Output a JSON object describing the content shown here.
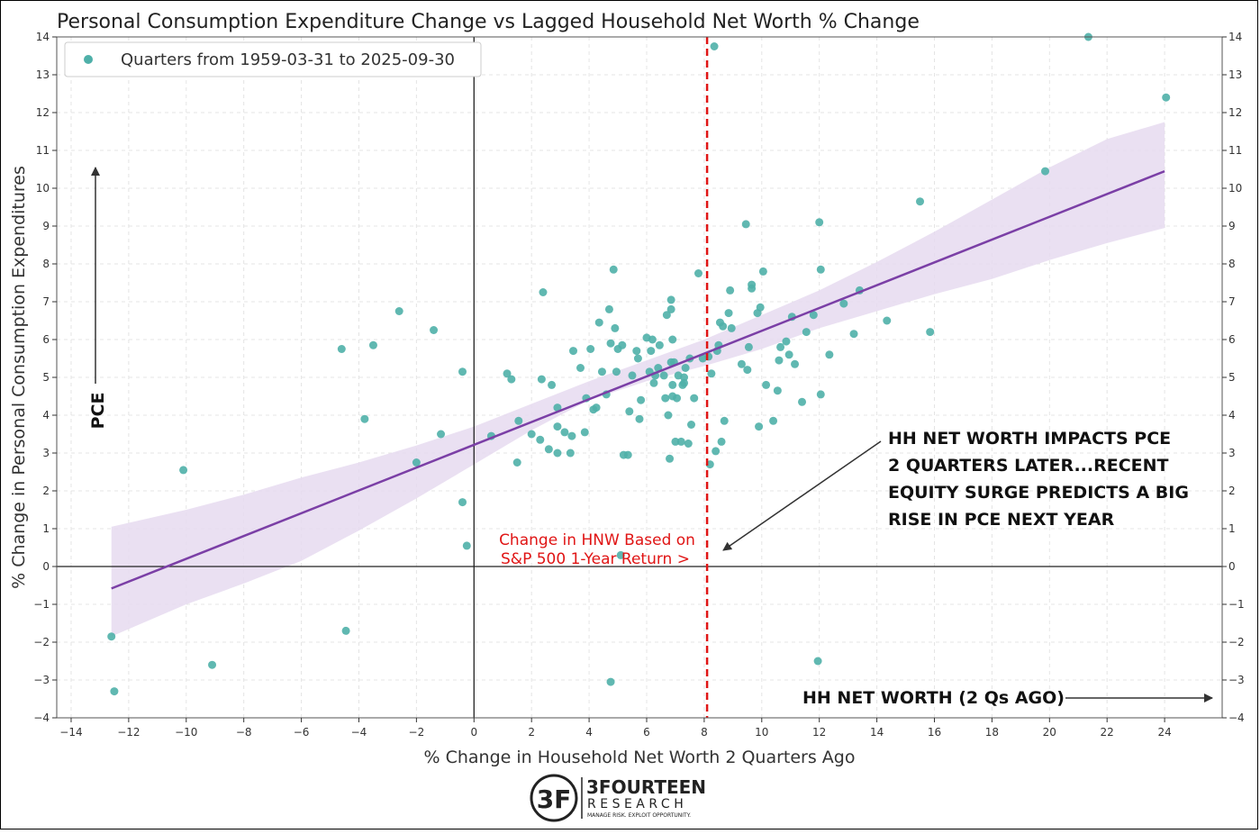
{
  "chart_data": {
    "type": "scatter",
    "title": "Personal Consumption Expenditure Change vs Lagged Household Net Worth % Change",
    "xlabel": "% Change in Household Net Worth 2 Quarters Ago",
    "ylabel": "% Change in Personal Consumption Expenditures",
    "xlim": [
      -14.5,
      26
    ],
    "ylim": [
      -4,
      14
    ],
    "x_ticks": [
      -14,
      -12,
      -10,
      -8,
      -6,
      -4,
      -2,
      0,
      2,
      4,
      6,
      8,
      10,
      12,
      14,
      16,
      18,
      20,
      22,
      24
    ],
    "y_ticks": [
      -4,
      -3,
      -2,
      -1,
      0,
      1,
      2,
      3,
      4,
      5,
      6,
      7,
      8,
      9,
      10,
      11,
      12,
      13,
      14
    ],
    "x_tick_labels": [
      "−14",
      "−12",
      "−10",
      "−8",
      "−6",
      "−4",
      "−2",
      "0",
      "2",
      "4",
      "6",
      "8",
      "10",
      "12",
      "14",
      "16",
      "18",
      "20",
      "22",
      "24"
    ],
    "y_tick_labels": [
      "−4",
      "−3",
      "−2",
      "−1",
      "0",
      "1",
      "2",
      "3",
      "4",
      "5",
      "6",
      "7",
      "8",
      "9",
      "10",
      "11",
      "12",
      "13",
      "14"
    ],
    "grid": true,
    "legend": {
      "placement": "top-left",
      "entry": "Quarters from 1959-03-31 to 2025-09-30"
    },
    "colors": {
      "points": "#4fb0a9",
      "fit_line": "#7b3fa6",
      "band": "#e6daf0",
      "vline": "#e01515",
      "axes": "#000000"
    },
    "series": [
      {
        "points": [
          [
            -12.6,
            -1.85
          ],
          [
            -12.5,
            -3.3
          ],
          [
            -10.1,
            2.55
          ],
          [
            -9.1,
            -2.6
          ],
          [
            -4.6,
            5.75
          ],
          [
            -4.45,
            -1.7
          ],
          [
            -3.8,
            3.9
          ],
          [
            -3.5,
            5.85
          ],
          [
            -2.6,
            6.75
          ],
          [
            -2.0,
            2.75
          ],
          [
            -1.4,
            6.25
          ],
          [
            -1.15,
            3.5
          ],
          [
            -0.4,
            5.15
          ],
          [
            -0.4,
            1.7
          ],
          [
            -0.25,
            0.55
          ],
          [
            0.6,
            3.45
          ],
          [
            1.15,
            5.1
          ],
          [
            1.3,
            4.95
          ],
          [
            1.5,
            2.75
          ],
          [
            1.55,
            3.85
          ],
          [
            2.0,
            3.5
          ],
          [
            2.3,
            3.35
          ],
          [
            2.35,
            4.95
          ],
          [
            2.4,
            7.25
          ],
          [
            2.6,
            3.1
          ],
          [
            2.7,
            4.8
          ],
          [
            2.9,
            3.0
          ],
          [
            2.9,
            3.7
          ],
          [
            2.9,
            4.2
          ],
          [
            3.15,
            3.55
          ],
          [
            3.35,
            3.0
          ],
          [
            3.4,
            3.45
          ],
          [
            3.45,
            5.7
          ],
          [
            3.7,
            5.25
          ],
          [
            3.85,
            3.55
          ],
          [
            3.9,
            4.45
          ],
          [
            4.05,
            5.75
          ],
          [
            4.15,
            4.15
          ],
          [
            4.25,
            4.2
          ],
          [
            4.35,
            6.45
          ],
          [
            4.45,
            5.15
          ],
          [
            4.6,
            4.55
          ],
          [
            4.7,
            6.8
          ],
          [
            4.75,
            5.9
          ],
          [
            4.85,
            7.85
          ],
          [
            4.9,
            6.3
          ],
          [
            4.95,
            5.15
          ],
          [
            5.0,
            5.75
          ],
          [
            5.15,
            5.85
          ],
          [
            5.2,
            2.95
          ],
          [
            5.35,
            2.95
          ],
          [
            5.4,
            4.1
          ],
          [
            5.5,
            5.05
          ],
          [
            5.65,
            5.7
          ],
          [
            5.7,
            5.5
          ],
          [
            5.75,
            3.9
          ],
          [
            5.8,
            4.4
          ],
          [
            6.0,
            6.05
          ],
          [
            6.1,
            5.15
          ],
          [
            6.15,
            5.7
          ],
          [
            6.2,
            6.0
          ],
          [
            6.25,
            4.85
          ],
          [
            6.3,
            5.05
          ],
          [
            6.4,
            5.25
          ],
          [
            6.45,
            5.85
          ],
          [
            6.6,
            5.05
          ],
          [
            6.65,
            4.45
          ],
          [
            6.7,
            6.65
          ],
          [
            6.75,
            4.0
          ],
          [
            6.8,
            2.85
          ],
          [
            6.85,
            5.4
          ],
          [
            6.85,
            6.8
          ],
          [
            6.85,
            7.05
          ],
          [
            6.9,
            4.5
          ],
          [
            6.9,
            4.8
          ],
          [
            6.9,
            6.0
          ],
          [
            6.95,
            5.4
          ],
          [
            7.0,
            3.3
          ],
          [
            7.05,
            4.45
          ],
          [
            7.1,
            5.05
          ],
          [
            7.2,
            3.3
          ],
          [
            7.25,
            4.8
          ],
          [
            7.3,
            5.0
          ],
          [
            7.3,
            4.85
          ],
          [
            7.35,
            5.25
          ],
          [
            7.45,
            3.25
          ],
          [
            7.5,
            5.5
          ],
          [
            7.55,
            3.75
          ],
          [
            7.65,
            4.45
          ],
          [
            7.8,
            7.75
          ],
          [
            7.95,
            5.5
          ],
          [
            8.15,
            5.55
          ],
          [
            8.2,
            2.7
          ],
          [
            8.25,
            5.1
          ],
          [
            8.35,
            13.75
          ],
          [
            8.4,
            3.05
          ],
          [
            8.45,
            5.7
          ],
          [
            8.5,
            5.85
          ],
          [
            8.55,
            6.45
          ],
          [
            8.6,
            3.3
          ],
          [
            8.65,
            6.35
          ],
          [
            8.7,
            3.85
          ],
          [
            8.85,
            6.7
          ],
          [
            8.9,
            7.3
          ],
          [
            8.95,
            6.3
          ],
          [
            9.3,
            5.35
          ],
          [
            9.45,
            9.05
          ],
          [
            9.5,
            5.2
          ],
          [
            9.55,
            5.8
          ],
          [
            9.65,
            7.45
          ],
          [
            9.65,
            7.35
          ],
          [
            9.85,
            6.7
          ],
          [
            9.9,
            3.7
          ],
          [
            9.95,
            6.85
          ],
          [
            10.05,
            7.8
          ],
          [
            10.15,
            4.8
          ],
          [
            10.4,
            3.85
          ],
          [
            10.55,
            4.65
          ],
          [
            10.6,
            5.45
          ],
          [
            10.65,
            5.8
          ],
          [
            10.85,
            5.95
          ],
          [
            10.95,
            5.6
          ],
          [
            11.05,
            6.6
          ],
          [
            11.15,
            5.35
          ],
          [
            11.4,
            4.35
          ],
          [
            11.55,
            6.2
          ],
          [
            11.8,
            6.65
          ],
          [
            12.0,
            9.1
          ],
          [
            12.05,
            7.85
          ],
          [
            12.05,
            4.55
          ],
          [
            11.95,
            -2.5
          ],
          [
            12.35,
            5.6
          ],
          [
            12.85,
            6.95
          ],
          [
            13.2,
            6.15
          ],
          [
            13.4,
            7.3
          ],
          [
            14.35,
            6.5
          ],
          [
            15.5,
            9.65
          ],
          [
            15.85,
            6.2
          ],
          [
            19.85,
            10.45
          ],
          [
            21.35,
            14.0
          ],
          [
            24.05,
            12.4
          ],
          [
            4.75,
            -3.05
          ],
          [
            5.1,
            0.3
          ]
        ]
      }
    ],
    "fit_line": {
      "x": [
        -12.6,
        24.0
      ],
      "y": [
        -0.58,
        10.45
      ]
    },
    "confidence_band": {
      "x": [
        -12.6,
        -10,
        -8,
        -6,
        -4,
        -2,
        0,
        2,
        4,
        6,
        8,
        10,
        12,
        14,
        16,
        18,
        20,
        22,
        24
      ],
      "lower": [
        -1.85,
        -1.0,
        -0.45,
        0.15,
        0.95,
        1.8,
        2.7,
        3.6,
        4.4,
        4.9,
        5.3,
        5.75,
        6.3,
        6.75,
        7.2,
        7.6,
        8.1,
        8.55,
        8.95
      ],
      "upper": [
        1.05,
        1.5,
        1.9,
        2.35,
        2.75,
        3.2,
        3.7,
        4.3,
        4.9,
        5.45,
        6.0,
        6.65,
        7.3,
        8.05,
        8.85,
        9.7,
        10.55,
        11.3,
        11.75
      ]
    },
    "vline_x": 8.1,
    "annotations": {
      "vline_label_1": "Change in HNW Based on",
      "vline_label_2": "S&P 500 1-Year Return >",
      "callout_1": "HH NET WORTH IMPACTS PCE",
      "callout_2": "2 QUARTERS LATER...RECENT",
      "callout_3": "EQUITY SURGE PREDICTS A BIG",
      "callout_4": "RISE IN PCE NEXT YEAR",
      "y_arrow_label": "PCE",
      "x_arrow_label": "HH NET WORTH (2 Qs AGO)"
    }
  },
  "logo": {
    "mark": "3F",
    "name": "3FOURTEEN",
    "sub": "RESEARCH",
    "tagline": "MANAGE RISK. EXPLOIT OPPORTUNITY."
  }
}
